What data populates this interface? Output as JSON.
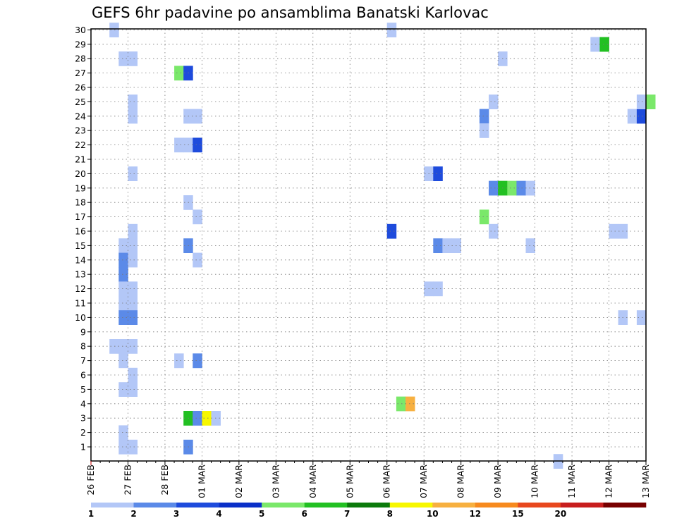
{
  "chart_data": {
    "type": "heatmap",
    "title": "GEFS 6hr padavine po ansamblima Banatski Karlovac",
    "y_ticks": [
      "1",
      "2",
      "3",
      "4",
      "5",
      "6",
      "7",
      "8",
      "9",
      "10",
      "11",
      "12",
      "13",
      "14",
      "15",
      "16",
      "17",
      "18",
      "19",
      "20",
      "21",
      "22",
      "23",
      "24",
      "25",
      "26",
      "27",
      "28",
      "29",
      "30"
    ],
    "ylim": [
      0,
      30
    ],
    "x_ticks": [
      "26 FEB",
      "27 FEB",
      "28 FEB",
      "01 MAR",
      "02 MAR",
      "03 MAR",
      "04 MAR",
      "05 MAR",
      "06 MAR",
      "07 MAR",
      "08 MAR",
      "09 MAR",
      "10 MAR",
      "11 MAR",
      "12 MAR",
      "13 MAR"
    ],
    "x_step": "6hr",
    "grid": true,
    "colorbar": {
      "labels": [
        "1",
        "2",
        "3",
        "4",
        "5",
        "6",
        "7",
        "8",
        "10",
        "12",
        "15",
        "20"
      ],
      "colors": [
        "#b3c7f7",
        "#5b8ae8",
        "#1e4bdc",
        "#0a2fc8",
        "#7ae86a",
        "#22c022",
        "#0b7a0b",
        "#f7f700",
        "#f7b040",
        "#f78a1e",
        "#e8481e",
        "#c81e1e",
        "#780000"
      ]
    },
    "cells": [
      {
        "t": 2,
        "m": 30,
        "c": 0
      },
      {
        "t": 3,
        "m": 28,
        "c": 0
      },
      {
        "t": 4,
        "m": 28,
        "c": 0
      },
      {
        "t": 4,
        "m": 25,
        "c": 0
      },
      {
        "t": 4,
        "m": 24,
        "c": 0
      },
      {
        "t": 4,
        "m": 20,
        "c": 0
      },
      {
        "t": 4,
        "m": 16,
        "c": 0
      },
      {
        "t": 3,
        "m": 15,
        "c": 0
      },
      {
        "t": 4,
        "m": 15,
        "c": 0
      },
      {
        "t": 3,
        "m": 14,
        "c": 1
      },
      {
        "t": 4,
        "m": 14,
        "c": 0
      },
      {
        "t": 3,
        "m": 13,
        "c": 1
      },
      {
        "t": 3,
        "m": 12,
        "c": 0
      },
      {
        "t": 4,
        "m": 12,
        "c": 0
      },
      {
        "t": 3,
        "m": 11,
        "c": 0
      },
      {
        "t": 4,
        "m": 11,
        "c": 0
      },
      {
        "t": 3,
        "m": 10,
        "c": 1
      },
      {
        "t": 4,
        "m": 10,
        "c": 1
      },
      {
        "t": 2,
        "m": 8,
        "c": 0
      },
      {
        "t": 3,
        "m": 8,
        "c": 0
      },
      {
        "t": 4,
        "m": 8,
        "c": 0
      },
      {
        "t": 3,
        "m": 7,
        "c": 0
      },
      {
        "t": 4,
        "m": 6,
        "c": 0
      },
      {
        "t": 3,
        "m": 5,
        "c": 0
      },
      {
        "t": 4,
        "m": 5,
        "c": 0
      },
      {
        "t": 3,
        "m": 2,
        "c": 0
      },
      {
        "t": 3,
        "m": 1,
        "c": 0
      },
      {
        "t": 4,
        "m": 1,
        "c": 0
      },
      {
        "t": 9,
        "m": 27,
        "c": 4
      },
      {
        "t": 10,
        "m": 27,
        "c": 2
      },
      {
        "t": 10,
        "m": 24,
        "c": 0
      },
      {
        "t": 11,
        "m": 24,
        "c": 0
      },
      {
        "t": 9,
        "m": 22,
        "c": 0
      },
      {
        "t": 10,
        "m": 22,
        "c": 0
      },
      {
        "t": 11,
        "m": 22,
        "c": 2
      },
      {
        "t": 10,
        "m": 18,
        "c": 0
      },
      {
        "t": 11,
        "m": 17,
        "c": 0
      },
      {
        "t": 10,
        "m": 15,
        "c": 1
      },
      {
        "t": 11,
        "m": 14,
        "c": 0
      },
      {
        "t": 9,
        "m": 7,
        "c": 0
      },
      {
        "t": 11,
        "m": 7,
        "c": 1
      },
      {
        "t": 10,
        "m": 3,
        "c": 5
      },
      {
        "t": 11,
        "m": 3,
        "c": 1
      },
      {
        "t": 12,
        "m": 3,
        "c": 7
      },
      {
        "t": 13,
        "m": 3,
        "c": 0
      },
      {
        "t": 10,
        "m": 1,
        "c": 1
      },
      {
        "t": 32,
        "m": 30,
        "c": 0
      },
      {
        "t": 32,
        "m": 16,
        "c": 2
      },
      {
        "t": 33,
        "m": 4,
        "c": 4
      },
      {
        "t": 34,
        "m": 4,
        "c": 8
      },
      {
        "t": 36,
        "m": 20,
        "c": 0
      },
      {
        "t": 37,
        "m": 20,
        "c": 2
      },
      {
        "t": 37,
        "m": 15,
        "c": 1
      },
      {
        "t": 38,
        "m": 15,
        "c": 0
      },
      {
        "t": 39,
        "m": 15,
        "c": 0
      },
      {
        "t": 36,
        "m": 12,
        "c": 0
      },
      {
        "t": 37,
        "m": 12,
        "c": 0
      },
      {
        "t": 42,
        "m": 24,
        "c": 1
      },
      {
        "t": 42,
        "m": 23,
        "c": 0
      },
      {
        "t": 43,
        "m": 25,
        "c": 0
      },
      {
        "t": 42,
        "m": 17,
        "c": 4
      },
      {
        "t": 43,
        "m": 16,
        "c": 0
      },
      {
        "t": 43,
        "m": 19,
        "c": 1
      },
      {
        "t": 44,
        "m": 19,
        "c": 5
      },
      {
        "t": 45,
        "m": 19,
        "c": 4
      },
      {
        "t": 46,
        "m": 19,
        "c": 1
      },
      {
        "t": 47,
        "m": 19,
        "c": 0
      },
      {
        "t": 44,
        "m": 28,
        "c": 0
      },
      {
        "t": 47,
        "m": 15,
        "c": 0
      },
      {
        "t": 50,
        "m": 0,
        "c": 0
      },
      {
        "t": 54,
        "m": 29,
        "c": 0
      },
      {
        "t": 55,
        "m": 29,
        "c": 5
      },
      {
        "t": 56,
        "m": 16,
        "c": 0
      },
      {
        "t": 57,
        "m": 16,
        "c": 0
      },
      {
        "t": 57,
        "m": 10,
        "c": 0
      },
      {
        "t": 58,
        "m": 24,
        "c": 0
      },
      {
        "t": 59,
        "m": 24,
        "c": 2
      },
      {
        "t": 59,
        "m": 25,
        "c": 0
      },
      {
        "t": 60,
        "m": 25,
        "c": 4
      },
      {
        "t": 59,
        "m": 10,
        "c": 0
      }
    ]
  }
}
